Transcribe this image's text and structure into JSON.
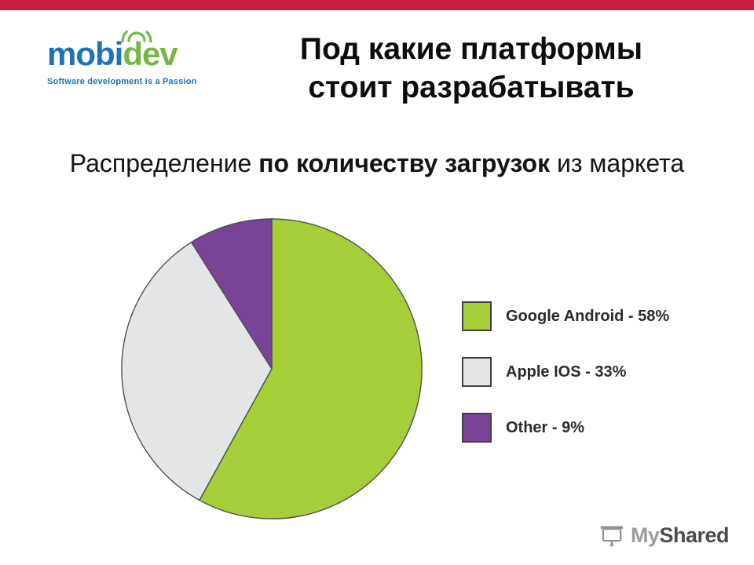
{
  "slide": {
    "title_line1": "Под какие платформы",
    "title_line2": "стоит разрабатывать",
    "subtitle_pre": "Распределение ",
    "subtitle_bold": "по количеству загрузок",
    "subtitle_post": " из маркета"
  },
  "logo": {
    "text_mobi": "mobi",
    "text_dev": "dev",
    "tagline": "Software development is a Passion"
  },
  "chart_data": {
    "type": "pie",
    "title": "Распределение по количеству загрузок из маркета",
    "slices": [
      {
        "category": "Google Android",
        "value": 58,
        "label": "Google Android - 58%",
        "color": "#a6ce39"
      },
      {
        "category": "Apple IOS",
        "value": 33,
        "label": "Apple IOS - 33%",
        "color": "#e4e5e6"
      },
      {
        "category": "Other",
        "value": 9,
        "label": "Other - 9%",
        "color": "#7a4398"
      }
    ],
    "start_angle_deg": 0,
    "direction": "clockwise",
    "legend_position": "right",
    "slice_stroke": "#4d4d4f"
  },
  "footer": {
    "brand_my": "My",
    "brand_shared": "Shared"
  },
  "colors": {
    "top_bar": "#c72045",
    "logo_blue": "#1e73b8",
    "logo_green": "#74b843"
  }
}
